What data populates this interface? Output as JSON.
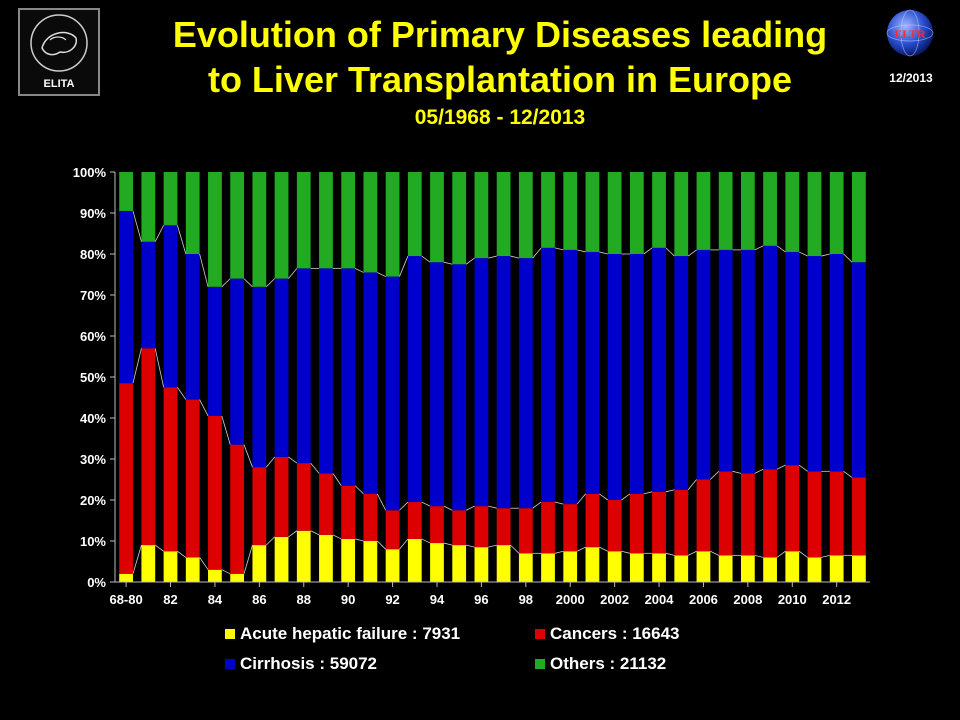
{
  "title_line1": "Evolution of Primary Diseases leading",
  "title_line2": "to Liver Transplantation in Europe",
  "subtitle": "05/1968 - 12/2013",
  "logo_left_text": "ELITA",
  "logo_right_text": "ELTR",
  "date_tag": "12/2013",
  "chart_data": {
    "type": "bar",
    "stacked": true,
    "percent": true,
    "categories": [
      "68-80",
      "81",
      "82",
      "83",
      "84",
      "85",
      "86",
      "87",
      "88",
      "89",
      "90",
      "91",
      "92",
      "93",
      "94",
      "95",
      "96",
      "97",
      "98",
      "99",
      "2000",
      "2001",
      "2002",
      "2003",
      "2004",
      "2005",
      "2006",
      "2007",
      "2008",
      "2009",
      "2010",
      "2011",
      "2012",
      "2013"
    ],
    "x_tick_labels": [
      "68-80",
      "82",
      "84",
      "86",
      "88",
      "90",
      "92",
      "94",
      "96",
      "98",
      "2000",
      "2002",
      "2004",
      "2006",
      "2008",
      "2010",
      "2012"
    ],
    "y_tick_labels": [
      "0%",
      "10%",
      "20%",
      "30%",
      "40%",
      "50%",
      "60%",
      "70%",
      "80%",
      "90%",
      "100%"
    ],
    "ylim": [
      0,
      100
    ],
    "grid": false,
    "legend_position": "bottom",
    "series": [
      {
        "name": "Acute hepatic failure : 7931",
        "color": "#ffff00",
        "values": [
          2,
          9,
          7.5,
          6,
          3,
          2,
          9,
          11,
          12.5,
          11.5,
          10.5,
          10,
          8,
          10.5,
          9.5,
          9,
          8.5,
          9,
          7,
          7,
          7.5,
          8.5,
          7.5,
          7,
          7,
          6.5,
          7.5,
          6.5,
          6.5,
          6,
          7.5,
          6,
          6.5,
          6.5
        ]
      },
      {
        "name": "Cancers : 16643",
        "color": "#dd0000",
        "values": [
          46.5,
          48,
          40,
          38.5,
          37.5,
          31.5,
          19,
          19.5,
          16.5,
          15,
          13,
          11.5,
          9.5,
          9,
          9,
          8.5,
          10,
          9,
          11,
          12.5,
          11.5,
          13,
          12.5,
          14.5,
          15,
          16,
          17.5,
          20.5,
          20,
          21.5,
          21,
          21,
          20.5,
          19
        ]
      },
      {
        "name": "Cirrhosis : 59072",
        "color": "#0000cc",
        "values": [
          42,
          26,
          39.5,
          35.5,
          31.5,
          40.5,
          44,
          43.5,
          47.5,
          50,
          53,
          54,
          57,
          60,
          59.5,
          60,
          60.5,
          61.5,
          61,
          62,
          62,
          59,
          60,
          58.5,
          59.5,
          57,
          56,
          54,
          54.5,
          54.5,
          52,
          52.5,
          53,
          52.5
        ]
      },
      {
        "name": "Others : 21132",
        "color": "#22aa22",
        "values": [
          9.5,
          17,
          13,
          20,
          28,
          26,
          28,
          26,
          23.5,
          23.5,
          23.5,
          24.5,
          25.5,
          20.5,
          22,
          22.5,
          21,
          20.5,
          21,
          18.5,
          19,
          19.5,
          20,
          20,
          18.5,
          20.5,
          19,
          19,
          19,
          18,
          19.5,
          20.5,
          20,
          22
        ]
      }
    ]
  }
}
